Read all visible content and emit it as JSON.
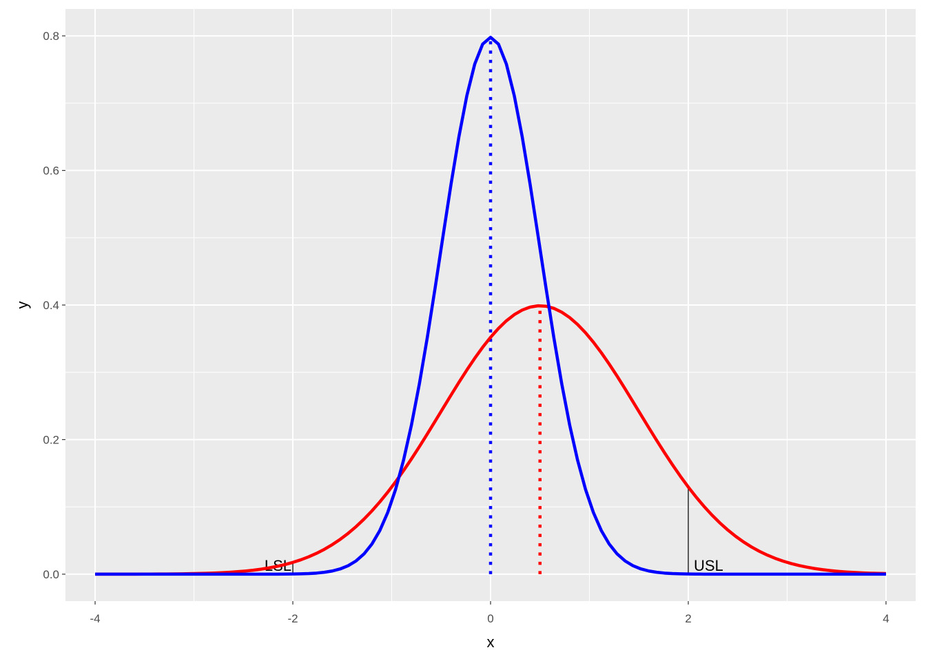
{
  "chart_data": {
    "type": "line",
    "xlabel": "x",
    "ylabel": "y",
    "xlim": [
      -4.3,
      4.3
    ],
    "ylim": [
      -0.04,
      0.84
    ],
    "x_ticks": [
      -4,
      -2,
      0,
      2,
      4
    ],
    "x_tick_labels": [
      "-4",
      "-2",
      "0",
      "2",
      "4"
    ],
    "y_ticks": [
      0.0,
      0.2,
      0.4,
      0.6,
      0.8
    ],
    "y_tick_labels": [
      "0.0",
      "0.2",
      "0.4",
      "0.6",
      "0.8"
    ],
    "grid": true,
    "background": "#ebebeb",
    "series": [
      {
        "distribution": "normal",
        "mean": 0.5,
        "sd": 1.0,
        "color": "#ff0000",
        "x_range": [
          -4,
          4
        ]
      },
      {
        "distribution": "normal",
        "mean": 0.0,
        "sd": 0.5,
        "color": "#0000ff",
        "x_range": [
          -4,
          4
        ]
      }
    ],
    "mean_lines": [
      {
        "x": 0.5,
        "y_top": 0.4,
        "color": "#ff0000",
        "style": "dotted"
      },
      {
        "x": 0.0,
        "y_top": 0.798,
        "color": "#0000ff",
        "style": "dotted"
      }
    ],
    "spec_limits": [
      {
        "label": "LSL",
        "x": -2,
        "y_top": 0.0175,
        "label_side": "left"
      },
      {
        "label": "USL",
        "x": 2,
        "y_top": 0.1295,
        "label_side": "right"
      }
    ]
  }
}
